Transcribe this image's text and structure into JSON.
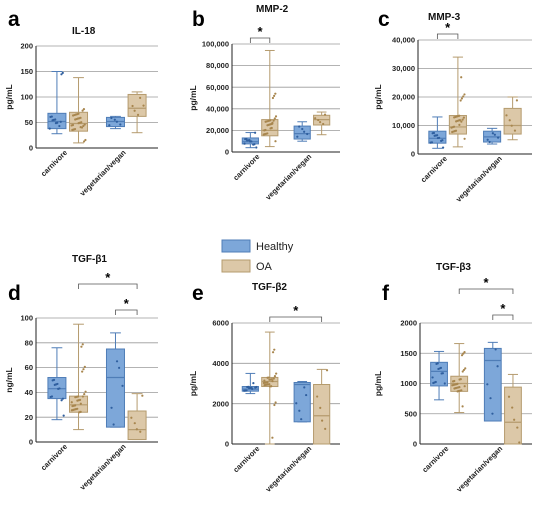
{
  "legend": {
    "entries": [
      {
        "label": "Healthy",
        "color": "#7DA7D9"
      },
      {
        "label": "OA",
        "color": "#DCC8A8"
      }
    ],
    "edge_colors": {
      "Healthy": "#4F7DB7",
      "OA": "#B59B6E"
    },
    "point_colors": {
      "Healthy": "#2F5F9F",
      "OA": "#A8864E"
    }
  },
  "chart_data": [
    {
      "panel": "a",
      "title": "IL-18",
      "type": "box",
      "ylabel": "pg/mL",
      "ylim": [
        0,
        200
      ],
      "yticks": [
        "0",
        "50",
        "100",
        "150",
        "200"
      ],
      "grid": true,
      "categories": [
        "carnivore",
        "vegetarian/vegan"
      ],
      "series": [
        {
          "name": "Healthy",
          "boxes": [
            {
              "category": "carnivore",
              "min": 28,
              "q1": 38,
              "median": 52,
              "q3": 68,
              "max": 150
            },
            {
              "category": "vegetarian/vegan",
              "min": 38,
              "q1": 42,
              "median": 52,
              "q3": 60,
              "max": 62
            }
          ]
        },
        {
          "name": "OA",
          "boxes": [
            {
              "category": "carnivore",
              "min": 10,
              "q1": 33,
              "median": 48,
              "q3": 70,
              "max": 138
            },
            {
              "category": "vegetarian/vegan",
              "min": 30,
              "q1": 62,
              "median": 78,
              "q3": 105,
              "max": 110
            }
          ]
        }
      ],
      "significance": []
    },
    {
      "panel": "b",
      "title": "MMP-2",
      "type": "box",
      "ylabel": "pg/mL",
      "ylim": [
        0,
        100000
      ],
      "yticks": [
        "0",
        "20,000",
        "40,000",
        "60,000",
        "80,000",
        "100,000"
      ],
      "grid": true,
      "categories": [
        "carnivore",
        "vegetarian/vegan"
      ],
      "series": [
        {
          "name": "Healthy",
          "boxes": [
            {
              "category": "carnivore",
              "min": 4000,
              "q1": 7500,
              "median": 9500,
              "q3": 13000,
              "max": 18000
            },
            {
              "category": "vegetarian/vegan",
              "min": 10000,
              "q1": 12000,
              "median": 17000,
              "q3": 24000,
              "max": 28000
            }
          ]
        },
        {
          "name": "OA",
          "boxes": [
            {
              "category": "carnivore",
              "min": 5000,
              "q1": 15000,
              "median": 20000,
              "q3": 30000,
              "max": 94000
            },
            {
              "category": "vegetarian/vegan",
              "min": 16000,
              "q1": 25000,
              "median": 30000,
              "q3": 34000,
              "max": 37000
            }
          ]
        }
      ],
      "significance": [
        {
          "label": "*",
          "from": {
            "category": "carnivore",
            "series": "Healthy"
          },
          "to": {
            "category": "carnivore",
            "series": "OA"
          }
        }
      ]
    },
    {
      "panel": "c",
      "title": "MMP-3",
      "type": "box",
      "ylabel": "pg/mL",
      "ylim": [
        0,
        40000
      ],
      "yticks": [
        "0",
        "10,000",
        "20,000",
        "30,000",
        "40,000"
      ],
      "grid": true,
      "categories": [
        "carnivore",
        "vegetarian/vegan"
      ],
      "series": [
        {
          "name": "Healthy",
          "boxes": [
            {
              "category": "carnivore",
              "min": 2000,
              "q1": 3800,
              "median": 5500,
              "q3": 8000,
              "max": 13000
            },
            {
              "category": "vegetarian/vegan",
              "min": 3500,
              "q1": 4200,
              "median": 6000,
              "q3": 8000,
              "max": 9000
            }
          ]
        },
        {
          "name": "OA",
          "boxes": [
            {
              "category": "carnivore",
              "min": 2500,
              "q1": 7000,
              "median": 9500,
              "q3": 13500,
              "max": 34000
            },
            {
              "category": "vegetarian/vegan",
              "min": 5000,
              "q1": 7000,
              "median": 10000,
              "q3": 16000,
              "max": 20000
            }
          ]
        }
      ],
      "significance": [
        {
          "label": "*",
          "from": {
            "category": "carnivore",
            "series": "Healthy"
          },
          "to": {
            "category": "carnivore",
            "series": "OA"
          }
        }
      ]
    },
    {
      "panel": "d",
      "title": "TGF-β1",
      "type": "box",
      "ylabel": "ng/mL",
      "ylim": [
        0,
        100
      ],
      "yticks": [
        "0",
        "20",
        "40",
        "60",
        "80",
        "100"
      ],
      "grid": true,
      "categories": [
        "carnivore",
        "vegetarian/vegan"
      ],
      "series": [
        {
          "name": "Healthy",
          "boxes": [
            {
              "category": "carnivore",
              "min": 18,
              "q1": 35,
              "median": 43,
              "q3": 52,
              "max": 76
            },
            {
              "category": "vegetarian/vegan",
              "min": 12,
              "q1": 12,
              "median": 52,
              "q3": 75,
              "max": 88
            }
          ]
        },
        {
          "name": "OA",
          "boxes": [
            {
              "category": "carnivore",
              "min": 10,
              "q1": 24,
              "median": 30,
              "q3": 37,
              "max": 95
            },
            {
              "category": "vegetarian/vegan",
              "min": 2,
              "q1": 2,
              "median": 10,
              "q3": 25,
              "max": 39
            }
          ]
        }
      ],
      "significance": [
        {
          "label": "*",
          "from": {
            "category": "carnivore",
            "series": "OA"
          },
          "to": {
            "category": "vegetarian/vegan",
            "series": "OA"
          }
        },
        {
          "label": "*",
          "from": {
            "category": "vegetarian/vegan",
            "series": "Healthy"
          },
          "to": {
            "category": "vegetarian/vegan",
            "series": "OA"
          }
        }
      ]
    },
    {
      "panel": "e",
      "title": "TGF-β2",
      "type": "box",
      "ylabel": "pg/mL",
      "ylim": [
        0,
        6000
      ],
      "yticks": [
        "0",
        "2000",
        "4000",
        "6000"
      ],
      "grid": true,
      "categories": [
        "carnivore",
        "vegetarian/vegan"
      ],
      "series": [
        {
          "name": "Healthy",
          "boxes": [
            {
              "category": "carnivore",
              "min": 2500,
              "q1": 2620,
              "median": 2720,
              "q3": 2850,
              "max": 3500
            },
            {
              "category": "vegetarian/vegan",
              "min": 1100,
              "q1": 1100,
              "median": 2950,
              "q3": 3050,
              "max": 3100
            }
          ]
        },
        {
          "name": "OA",
          "boxes": [
            {
              "category": "carnivore",
              "min": 0,
              "q1": 2850,
              "median": 3100,
              "q3": 3300,
              "max": 5550
            },
            {
              "category": "vegetarian/vegan",
              "min": 0,
              "q1": 0,
              "median": 1400,
              "q3": 2950,
              "max": 3700
            }
          ]
        }
      ],
      "significance": [
        {
          "label": "*",
          "from": {
            "category": "carnivore",
            "series": "OA"
          },
          "to": {
            "category": "vegetarian/vegan",
            "series": "OA"
          }
        }
      ]
    },
    {
      "panel": "f",
      "title": "TGF-β3",
      "type": "box",
      "ylabel": "pg/mL",
      "ylim": [
        0,
        2000
      ],
      "yticks": [
        "0",
        "500",
        "1000",
        "1500",
        "2000"
      ],
      "grid": true,
      "categories": [
        "carnivore",
        "vegetarian/vegan"
      ],
      "series": [
        {
          "name": "Healthy",
          "boxes": [
            {
              "category": "carnivore",
              "min": 730,
              "q1": 960,
              "median": 1200,
              "q3": 1350,
              "max": 1530
            },
            {
              "category": "vegetarian/vegan",
              "min": 380,
              "q1": 380,
              "median": 1380,
              "q3": 1580,
              "max": 1680
            }
          ]
        },
        {
          "name": "OA",
          "boxes": [
            {
              "category": "carnivore",
              "min": 520,
              "q1": 870,
              "median": 1000,
              "q3": 1120,
              "max": 1660
            },
            {
              "category": "vegetarian/vegan",
              "min": 0,
              "q1": 0,
              "median": 360,
              "q3": 940,
              "max": 1150
            }
          ]
        }
      ],
      "significance": [
        {
          "label": "*",
          "from": {
            "category": "carnivore",
            "series": "OA"
          },
          "to": {
            "category": "vegetarian/vegan",
            "series": "OA"
          }
        },
        {
          "label": "*",
          "from": {
            "category": "vegetarian/vegan",
            "series": "Healthy"
          },
          "to": {
            "category": "vegetarian/vegan",
            "series": "OA"
          }
        }
      ]
    }
  ]
}
